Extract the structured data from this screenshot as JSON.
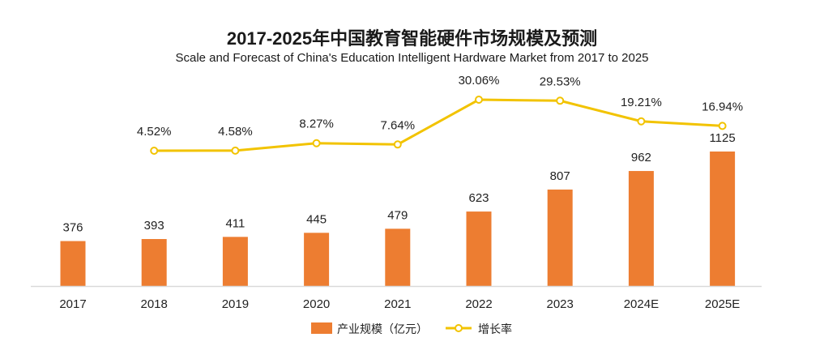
{
  "colors": {
    "bar": "#ED7D31",
    "line": "#F2C300",
    "axis": "#D9D9D9"
  },
  "chart_data": {
    "type": "bar",
    "title": "2017-2025年中国教育智能硬件市场规模及预测",
    "subtitle": "Scale and Forecast of China's Education Intelligent Hardware Market from 2017 to 2025",
    "categories": [
      "2017",
      "2018",
      "2019",
      "2020",
      "2021",
      "2022",
      "2023",
      "2024E",
      "2025E"
    ],
    "series": [
      {
        "name": "产业规模（亿元）",
        "type": "bar",
        "values": [
          376,
          393,
          411,
          445,
          479,
          623,
          807,
          962,
          1125
        ]
      },
      {
        "name": "增长率",
        "type": "line",
        "values": [
          null,
          4.52,
          4.58,
          8.27,
          7.64,
          30.06,
          29.53,
          19.21,
          16.94
        ],
        "labels": [
          "",
          "4.52%",
          "4.58%",
          "8.27%",
          "7.64%",
          "30.06%",
          "29.53%",
          "19.21%",
          "16.94%"
        ]
      }
    ],
    "grid": false,
    "legend": "bottom-center"
  }
}
